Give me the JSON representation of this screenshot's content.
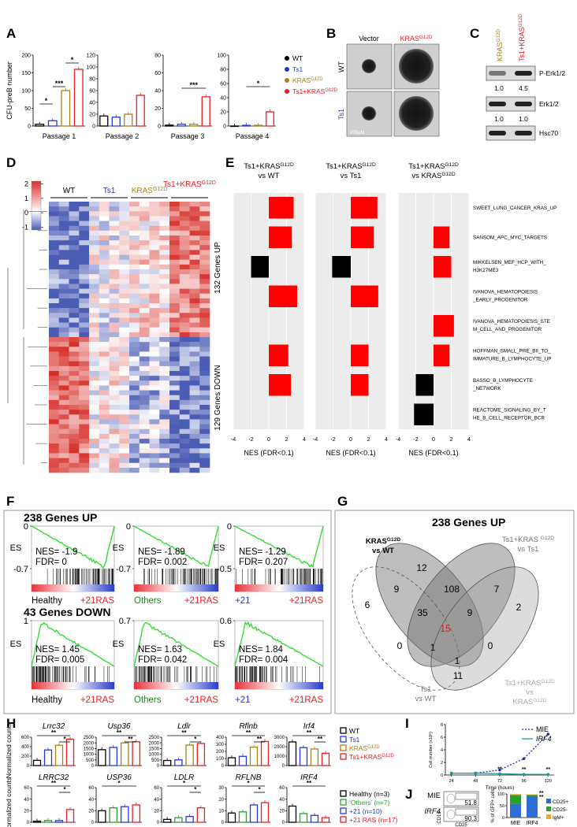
{
  "A": {
    "label": "A",
    "y_label": "CFU-preB number",
    "legend": [
      {
        "text": "WT",
        "color": "#000000"
      },
      {
        "text": "Ts1",
        "color": "#2637d9"
      },
      {
        "text": "KRAS",
        "sup": "G12D",
        "color": "#a8801a"
      },
      {
        "text": "Ts1+KRAS",
        "sup": "G12D",
        "color": "#ec1c24"
      }
    ],
    "plots": [
      {
        "title": "Passage 1",
        "ylim": [
          0,
          200
        ],
        "yticks": [
          0,
          50,
          100,
          150,
          200
        ],
        "values": [
          5,
          15,
          100,
          160
        ],
        "sig": [
          "*",
          "***",
          "*"
        ]
      },
      {
        "title": "Passage 2",
        "ylim": [
          0,
          120
        ],
        "yticks": [
          0,
          20,
          40,
          60,
          80,
          100,
          120
        ],
        "values": [
          17,
          15,
          20,
          52
        ]
      },
      {
        "title": "Passage 3",
        "ylim": [
          0,
          80
        ],
        "yticks": [
          0,
          20,
          40,
          60,
          80
        ],
        "values": [
          1,
          2,
          2,
          33
        ],
        "sig": [
          "***"
        ]
      },
      {
        "title": "Passage 4",
        "ylim": [
          0,
          100
        ],
        "yticks": [
          0,
          20,
          40,
          60,
          80,
          100
        ],
        "values": [
          0,
          1,
          1,
          20
        ],
        "sig": [
          "*"
        ]
      }
    ]
  },
  "B": {
    "label": "B",
    "columns": [
      "Vector",
      {
        "text": "KRAS",
        "sup": "G12D"
      }
    ],
    "rows": [
      "WT",
      "Ts1"
    ],
    "scale": "200μM"
  },
  "C": {
    "label": "C",
    "columns": [
      {
        "text": "KRAS",
        "sup": "G12D"
      },
      {
        "text": "Ts1+KRAS",
        "sup": "G12D"
      }
    ],
    "rows": [
      "P-Erk1/2",
      "Erk1/2",
      "Hsc70"
    ],
    "quant": [
      [
        {
          "value": 1,
          "label": "1.0"
        },
        4.5
      ],
      [
        {
          "value": 1,
          "label": "1.0"
        },
        {
          "value": 1,
          "label": "1.0"
        }
      ]
    ]
  },
  "D": {
    "label": "D",
    "clim": [
      -1.2,
      2.2
    ],
    "colorbar_ticks": [
      2,
      1,
      0,
      -1
    ],
    "columns": [
      "WT",
      "Ts1",
      {
        "text": "KRAS",
        "sup": "G12D"
      },
      {
        "text": "Ts1+KRAS",
        "sup": "G12D"
      }
    ],
    "groups": [
      "132 Genes UP",
      "129 Genes DOWN"
    ]
  },
  "E": {
    "label": "E",
    "xlim": [
      -4,
      4
    ],
    "xticks": [
      -4,
      -2,
      0,
      2,
      4
    ],
    "x_label": "NES (FDR<0.1)",
    "positive_color": "#ff0000",
    "negative_color": "#000000",
    "facets": [
      {
        "title": {
          "text": "Ts1+KRAS",
          "sup": "G12D"
        },
        "subtitle": "vs WT",
        "values": [
          2.8,
          2.6,
          -2.0,
          3.2,
          null,
          2.2,
          2.5,
          null
        ]
      },
      {
        "title": {
          "text": "Ts1+KRAS",
          "sup": "G12D"
        },
        "subtitle": "vs Ts1",
        "values": [
          3.0,
          2.6,
          -2.1,
          3.1,
          null,
          2.0,
          2.0,
          null
        ]
      },
      {
        "title": {
          "text": "Ts1+KRAS",
          "sup": "G12D"
        },
        "subtitle": {
          "text": "vs KRAS",
          "sup": "G12D"
        },
        "values": [
          null,
          1.8,
          2.0,
          null,
          2.3,
          1.8,
          -2.0,
          -2.2
        ]
      }
    ],
    "gene_sets": [
      [
        "SWEET_LUNG_CANCER_KRAS_UP"
      ],
      [
        "SANSOM_APC_MYC_TARGETS"
      ],
      [
        "MIKKELSEN_MEF_HCP_WITH_",
        "H3K27ME3"
      ],
      [
        "IVANOVA_HEMATOPOIESIS",
        "_EARLY_PROGENITOR"
      ],
      [
        "IVANOVA_HEMATOPOIESIS_STE",
        "M_CELL_AND_PROGENITOR"
      ],
      [
        "HOFFMAN_SMALL_PRE_BII_TO_",
        "IMMATURE_B_LYMPHOCYTE_UP"
      ],
      [
        "BASSO_B_LYMPHOCYTE",
        "_NETWORK"
      ],
      [
        "REACTOME_SIGNALING_BY_T",
        "HE_B_CELL_RECEPTOR_BCR"
      ]
    ]
  },
  "F": {
    "label": "F",
    "es_label": "ES",
    "curve_color": "#33dd33",
    "right_color": "#ec1c24",
    "sections": [
      {
        "title": "238 Genes UP",
        "plots": [
          {
            "ylim": [
              -0.7,
              0
            ],
            "yticks": [
              0,
              -0.7
            ],
            "nes": "NES= -1.9",
            "fdr": "FDR= 0",
            "left": "Healthy",
            "left_color": "#000000",
            "right": "+21RAS"
          },
          {
            "ylim": [
              -0.7,
              0
            ],
            "yticks": [
              0,
              -0.7
            ],
            "nes": "NES= -1.89",
            "fdr": "FDR= 0.002",
            "left": "Others",
            "left_color": "#1a8a1a",
            "right": "+21RAS"
          },
          {
            "ylim": [
              -0.5,
              0
            ],
            "yticks": [
              0,
              -0.5
            ],
            "nes": "NES= -1.29",
            "fdr": "FDR= 0.207",
            "left": "+21",
            "left_color": "#2637d9",
            "right": "+21RAS"
          }
        ]
      },
      {
        "title": "43 Genes DOWN",
        "plots": [
          {
            "ylim": [
              0,
              1
            ],
            "yticks": [
              1
            ],
            "nes": "NES= 1.45",
            "fdr": "FDR= 0.005",
            "left": "Healthy",
            "left_color": "#000000",
            "right": "+21RAS"
          },
          {
            "ylim": [
              0,
              0.7
            ],
            "yticks": [
              0.7
            ],
            "nes": "NES= 1.63",
            "fdr": "FDR= 0.042",
            "left": "Others",
            "left_color": "#1a8a1a",
            "right": "+21RAS"
          },
          {
            "ylim": [
              0,
              0.6
            ],
            "yticks": [
              0.6
            ],
            "nes": "NES= 1.84",
            "fdr": "FDR= 0.004",
            "left": "+21",
            "left_color": "#2637d9",
            "right": "+21RAS"
          }
        ]
      }
    ]
  },
  "G": {
    "label": "G",
    "title": "238 Genes UP",
    "sets": [
      [
        {
          "text": "KRAS",
          "sup": "G12D"
        },
        "vs WT"
      ],
      [
        {
          "text": "Ts1+KRAS ",
          "sup": "G12D"
        },
        "vs Ts1"
      ],
      [
        "Ts1",
        "vs WT"
      ],
      [
        {
          "text": "Ts1+KRAS",
          "sup": "G12D"
        },
        "vs",
        {
          "text": "KRAS",
          "sup": "G12D"
        }
      ]
    ],
    "counts": [
      12,
      9,
      108,
      7,
      6,
      35,
      9,
      2,
      15,
      0,
      1,
      0,
      1,
      11
    ]
  },
  "H": {
    "label": "H",
    "y_label": "Normalized counts",
    "top": [
      {
        "gene": "Lrrc32",
        "ylim": [
          0,
          600
        ],
        "yticks": [
          0,
          200,
          400,
          600
        ],
        "values": [
          110,
          330,
          430,
          560
        ],
        "sig": [
          "**",
          "*"
        ]
      },
      {
        "gene": "Usp36",
        "ylim": [
          0,
          2500
        ],
        "yticks": [
          0,
          500,
          1000,
          1500,
          2000,
          2500
        ],
        "values": [
          1400,
          1600,
          2000,
          2100
        ],
        "sig": [
          "**",
          "**"
        ]
      },
      {
        "gene": "Ldlr",
        "ylim": [
          0,
          2500
        ],
        "yticks": [
          0,
          500,
          1000,
          1500,
          2000,
          2500
        ],
        "values": [
          450,
          500,
          1800,
          1950
        ],
        "sig": [
          "**",
          "*"
        ]
      },
      {
        "gene": "Rflnb",
        "ylim": [
          0,
          400
        ],
        "yticks": [
          0,
          100,
          200,
          300,
          400
        ],
        "values": [
          110,
          130,
          260,
          340
        ],
        "sig": [
          "**",
          "**"
        ]
      },
      {
        "gene": "Irf4",
        "ylim": [
          0,
          3000
        ],
        "yticks": [
          0,
          1000,
          2000,
          3000
        ],
        "values": [
          2500,
          1900,
          1750,
          1300
        ],
        "sig": [
          "**",
          "**"
        ]
      }
    ],
    "bottom": [
      {
        "gene": "LRRC32",
        "ylim": [
          0,
          60
        ],
        "yticks": [
          0,
          20,
          40,
          60
        ],
        "values": [
          2,
          3,
          3,
          22
        ],
        "sig": [
          "**",
          "*"
        ]
      },
      {
        "gene": "USP36",
        "ylim": [
          0,
          60
        ],
        "yticks": [
          0,
          20,
          40,
          60
        ],
        "values": [
          20,
          25,
          27,
          30
        ],
        "sig": [
          "*"
        ]
      },
      {
        "gene": "LDLR",
        "ylim": [
          0,
          60
        ],
        "yticks": [
          0,
          20,
          40,
          60
        ],
        "values": [
          5,
          8,
          10,
          25
        ],
        "sig": [
          "*",
          "*"
        ]
      },
      {
        "gene": "RFLNB",
        "ylim": [
          0,
          30
        ],
        "yticks": [
          0,
          10,
          20,
          30
        ],
        "values": [
          8,
          9,
          15,
          17
        ],
        "sig": [
          "*",
          "*"
        ]
      },
      {
        "gene": "IRF4",
        "ylim": [
          0,
          60
        ],
        "yticks": [
          0,
          20,
          40,
          60
        ],
        "values": [
          28,
          15,
          12,
          8
        ],
        "sig": [
          "**"
        ]
      }
    ],
    "bottom_legend": [
      {
        "text": "Healthy (n=3)",
        "color": "#000000"
      },
      {
        "text": "‘Others’ (n=7)",
        "color": "#2ca02c"
      },
      {
        "text": "+21 (n=10)",
        "color": "#2637d9"
      },
      {
        "text": "+21 RAS (n=17)",
        "color": "#ec1c24"
      }
    ]
  },
  "I": {
    "label": "I",
    "y_label": "Cell number (x10⁶)",
    "x_label": "Time (hours)",
    "x": [
      24,
      48,
      72,
      96,
      120
    ],
    "xlim": [
      18,
      126
    ],
    "xticks": [
      24,
      48,
      72,
      96,
      120
    ],
    "ylim": [
      0,
      8
    ],
    "yticks": [
      0,
      2,
      4,
      6,
      8
    ],
    "series": [
      {
        "name": "MIE",
        "color": "#1f2fb5",
        "values": [
          0.3,
          0.3,
          0.8,
          2.6,
          6.5
        ]
      },
      {
        "name": "IRF4",
        "color": "#1a9a8a",
        "values": [
          0.3,
          0.3,
          0.2,
          0.1,
          0.1
        ]
      }
    ],
    "sig": [
      "**",
      "**",
      "**"
    ]
  },
  "J": {
    "label": "J",
    "flow": [
      {
        "name": "MIE",
        "value": 51.8
      },
      {
        "name": "IRF4",
        "value": 90.3
      }
    ],
    "flow_axes": [
      "CD19",
      "CD25"
    ],
    "y_label": "% of GFP+ cells",
    "categories": [
      "MIE",
      "IRF4"
    ],
    "ylim": [
      0,
      100
    ],
    "yticks": [
      0,
      50,
      100
    ],
    "series": [
      {
        "name": "CD25+",
        "color": "#2b6fd6",
        "values": [
          58,
          90
        ]
      },
      {
        "name": "CD25-",
        "color": "#2ca02c",
        "values": [
          38,
          5
        ]
      },
      {
        "name": "IgM+",
        "color": "#f5a623",
        "values": [
          3,
          3
        ]
      }
    ],
    "sig": [
      "**",
      "**"
    ]
  }
}
